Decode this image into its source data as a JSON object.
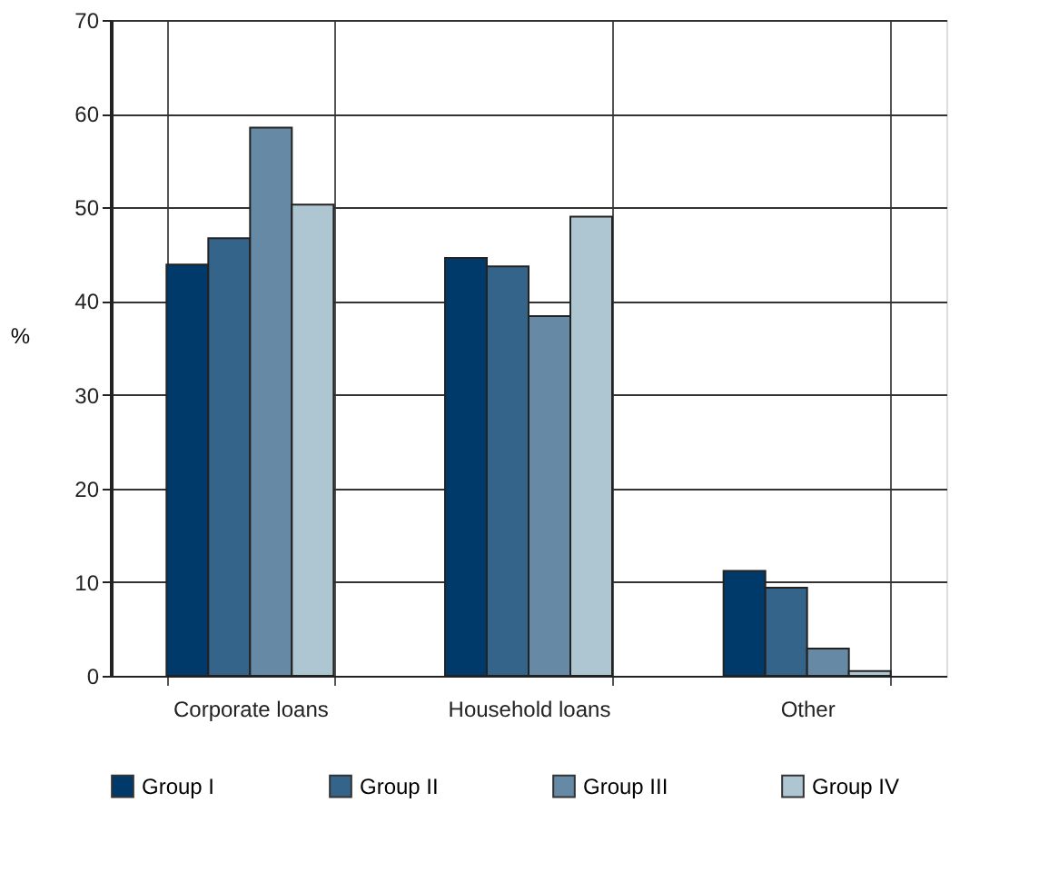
{
  "chart_data": {
    "type": "bar",
    "ylabel": "%",
    "categories": [
      "Corporate loans",
      "Household loans",
      "Other"
    ],
    "series": [
      {
        "name": "Group I",
        "color": "#003a6b",
        "values": [
          43.9,
          44.6,
          11.2
        ]
      },
      {
        "name": "Group II",
        "color": "#35648b",
        "values": [
          46.7,
          43.7,
          9.4
        ]
      },
      {
        "name": "Group III",
        "color": "#6689a5",
        "values": [
          58.5,
          38.4,
          2.9
        ]
      },
      {
        "name": "Group IV",
        "color": "#aec5d2",
        "values": [
          50.3,
          49.0,
          0.5
        ]
      }
    ],
    "ylim": [
      0,
      70
    ],
    "yticks": [
      0,
      10,
      20,
      30,
      40,
      50,
      60,
      70
    ],
    "grid": true,
    "legend": "bottom"
  }
}
